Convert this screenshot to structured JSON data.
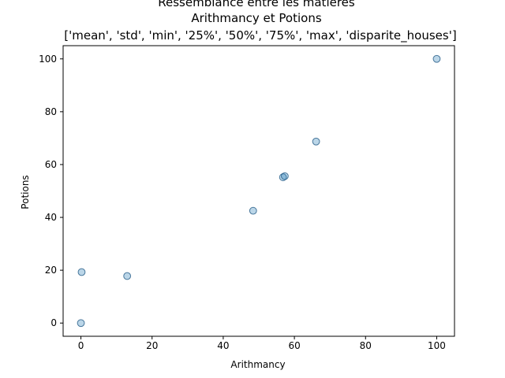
{
  "chart_data": {
    "type": "scatter",
    "title_lines": [
      "Ressemblance entre les matières",
      "Arithmancy et Potions",
      "['mean', 'std', 'min', '25%', '50%', '75%', 'max', 'disparite_houses']"
    ],
    "xlabel": "Arithmancy",
    "ylabel": "Potions",
    "xlim": [
      -5,
      105
    ],
    "ylim": [
      -5,
      105
    ],
    "xticks": [
      0,
      20,
      40,
      60,
      80,
      100
    ],
    "yticks": [
      0,
      20,
      40,
      60,
      80,
      100
    ],
    "grid": false,
    "marker_color": "#1f77b4",
    "marker_edge_color": "#16507e",
    "marker_alpha": 0.3,
    "points": [
      {
        "x": 0,
        "y": 0
      },
      {
        "x": 0.2,
        "y": 19.3
      },
      {
        "x": 13,
        "y": 17.8
      },
      {
        "x": 48.4,
        "y": 42.5
      },
      {
        "x": 56.8,
        "y": 55.2
      },
      {
        "x": 57.3,
        "y": 55.6
      },
      {
        "x": 66.1,
        "y": 68.7
      },
      {
        "x": 100,
        "y": 100
      }
    ]
  }
}
